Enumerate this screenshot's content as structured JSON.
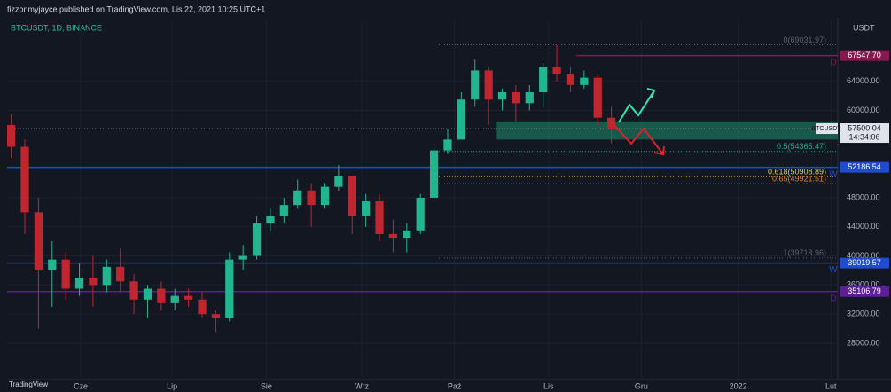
{
  "header": "fizzonmyjayce published on TradingView.com, Lis 22, 2021 10:25 UTC+1",
  "chart_data": {
    "type": "candlestick",
    "title": "BTCUSDT, 1D, BINANCE",
    "currency": "USDT",
    "up_color": "#22b58f",
    "down_color": "#c0262f",
    "open": [
      58000,
      55000,
      46000,
      38000,
      39500,
      35500,
      37000,
      36000,
      38500,
      36500,
      34000,
      35500,
      33500,
      34500,
      34000,
      32000,
      31500,
      39500,
      40000,
      44500,
      45500,
      47000,
      49000,
      47000,
      49500,
      51000,
      45500,
      47500,
      43000,
      42500,
      43500,
      48000,
      54500,
      56000,
      61500,
      65500,
      61500,
      62500,
      61000,
      62500,
      66000,
      65000,
      63500,
      64500,
      59000
    ],
    "high": [
      59500,
      56000,
      48000,
      42000,
      40500,
      39000,
      40000,
      39500,
      41000,
      37500,
      36000,
      36500,
      35500,
      35500,
      35000,
      32500,
      40500,
      41500,
      45500,
      46500,
      48000,
      50500,
      50000,
      50000,
      52500,
      51000,
      48500,
      48500,
      45000,
      44500,
      48500,
      55500,
      57500,
      62500,
      67000,
      66000,
      63000,
      63500,
      63500,
      66500,
      69000,
      66000,
      65500,
      65000,
      60500
    ],
    "low": [
      53500,
      43000,
      30000,
      33000,
      34000,
      34500,
      33000,
      35000,
      35000,
      32000,
      31500,
      32500,
      32500,
      33000,
      31500,
      29500,
      31000,
      38000,
      39500,
      43500,
      44500,
      46500,
      44000,
      46500,
      49000,
      43000,
      44000,
      42000,
      40500,
      40500,
      43000,
      47500,
      54000,
      56000,
      60500,
      58000,
      60000,
      58500,
      60000,
      60500,
      64000,
      62500,
      63000,
      58000,
      55500
    ],
    "close": [
      55000,
      46000,
      38000,
      39500,
      35500,
      37000,
      36000,
      38500,
      36500,
      34000,
      35500,
      33500,
      34500,
      34000,
      32000,
      31500,
      39500,
      40000,
      44500,
      45500,
      47000,
      49000,
      47000,
      49500,
      51000,
      45500,
      47500,
      43000,
      42500,
      43500,
      48000,
      54500,
      56000,
      61500,
      65500,
      61500,
      62500,
      61000,
      62500,
      66000,
      65000,
      63500,
      64500,
      59000,
      57500
    ],
    "xlim": [
      -0.3,
      60.6
    ],
    "xticks": [
      {
        "value": 5.1,
        "label": "Cze"
      },
      {
        "value": 11.8,
        "label": "Lip"
      },
      {
        "value": 18.7,
        "label": "Sie"
      },
      {
        "value": 25.7,
        "label": "Wrz"
      },
      {
        "value": 32.5,
        "label": "Paź"
      },
      {
        "value": 39.4,
        "label": "Lis"
      },
      {
        "value": 46.2,
        "label": "Gru"
      },
      {
        "value": 53.3,
        "label": "2022"
      },
      {
        "value": 60.1,
        "label": "Lut"
      }
    ],
    "ylim": [
      23000,
      72500
    ],
    "yticks": [
      {
        "value": 28000,
        "label": "28000.00"
      },
      {
        "value": 32000,
        "label": "32000.00"
      },
      {
        "value": 36000,
        "label": "36000.00"
      },
      {
        "value": 40000,
        "label": "40000.00"
      },
      {
        "value": 44000,
        "label": "44000.00"
      },
      {
        "value": 48000,
        "label": "48000.00"
      },
      {
        "value": 60000,
        "label": "60000.00"
      },
      {
        "value": 64000,
        "label": "64000.00"
      }
    ],
    "levels": [
      {
        "value": 67547.7,
        "label": "67547.70",
        "tag": "D",
        "color": "#8c1650"
      },
      {
        "value": 52186.54,
        "label": "52186.54",
        "tag": "W",
        "color": "#1f4bd1"
      },
      {
        "value": 39019.57,
        "label": "39019.57",
        "tag": "W",
        "color": "#1f4bd1"
      },
      {
        "value": 35106.79,
        "label": "35106.79",
        "tag": "D",
        "color": "#5e1e96"
      }
    ],
    "last_price": {
      "value": 57500.04,
      "label": "57500.04",
      "symbol": "BTCUSDT",
      "countdown": "14:34:06"
    },
    "fib_levels": [
      {
        "value": 69031.97,
        "label": "0(69031.97)",
        "color": "#5d606b"
      },
      {
        "value": 54365.47,
        "label": "0.5(54365.47)",
        "color": "#1fae8f"
      },
      {
        "value": 50908.89,
        "label": "0.618(50908.89)",
        "color": "#e6c84a"
      },
      {
        "value": 49921.51,
        "label": "0.65(49921.51)",
        "color": "#e07a2e"
      },
      {
        "value": 39718.96,
        "label": "1(39718.96)",
        "color": "#5d606b"
      }
    ],
    "zone": {
      "low": 56000,
      "high": 58500,
      "start": 35.6
    },
    "footer": "TradingView"
  }
}
